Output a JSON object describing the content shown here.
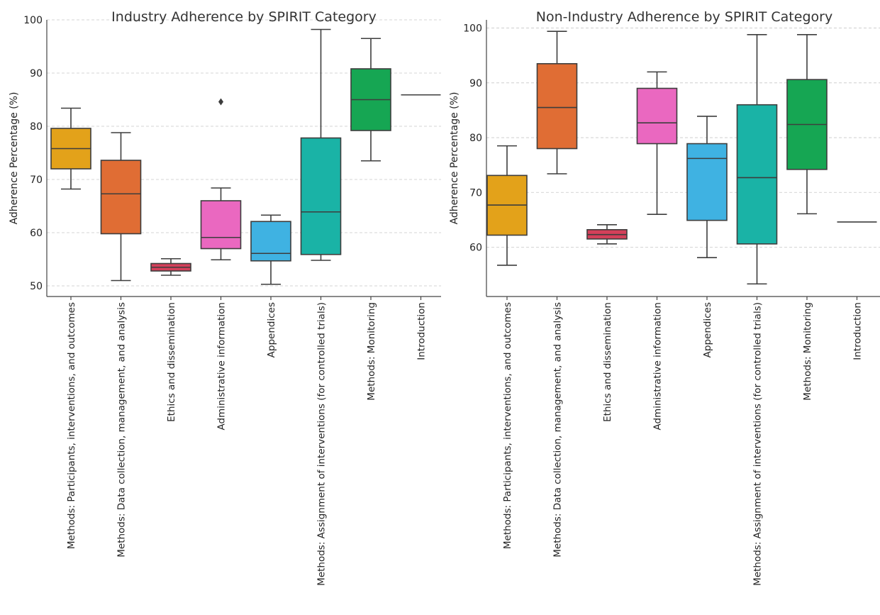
{
  "chart_data": [
    {
      "type": "box",
      "title": "Industry Adherence by SPIRIT Category",
      "ylabel": "Adherence Percentage (%)",
      "xlabel": "",
      "ylim": [
        48,
        100
      ],
      "yticks": [
        50,
        60,
        70,
        80,
        90,
        100
      ],
      "grid": true,
      "categories": [
        "Methods: Participants, interventions, and outcomes",
        "Methods: Data collection, management, and analysis",
        "Ethics and dissemination",
        "Administrative information",
        "Appendices",
        "Methods: Assignment of interventions (for controlled trials)",
        "Methods: Monitoring",
        "Introduction"
      ],
      "boxes": [
        {
          "whisker_low": 68.2,
          "q1": 72.0,
          "median": 75.8,
          "q3": 79.6,
          "whisker_high": 83.4,
          "outliers": [],
          "color": "#e3a21a"
        },
        {
          "whisker_low": 51.0,
          "q1": 59.8,
          "median": 67.3,
          "q3": 73.6,
          "whisker_high": 78.8,
          "outliers": [],
          "color": "#e06d34"
        },
        {
          "whisker_low": 52.0,
          "q1": 52.8,
          "median": 53.5,
          "q3": 54.2,
          "whisker_high": 55.1,
          "outliers": [],
          "color": "#d4405a"
        },
        {
          "whisker_low": 54.9,
          "q1": 57.0,
          "median": 59.1,
          "q3": 66.0,
          "whisker_high": 68.4,
          "outliers": [
            84.6
          ],
          "color": "#ea68c0"
        },
        {
          "whisker_low": 50.3,
          "q1": 54.7,
          "median": 56.1,
          "q3": 62.1,
          "whisker_high": 63.3,
          "outliers": [],
          "color": "#3fb2e2"
        },
        {
          "whisker_low": 54.8,
          "q1": 55.9,
          "median": 63.9,
          "q3": 77.8,
          "whisker_high": 98.2,
          "outliers": [],
          "color": "#1ab3a6"
        },
        {
          "whisker_low": 73.5,
          "q1": 79.2,
          "median": 85.0,
          "q3": 90.8,
          "whisker_high": 96.5,
          "outliers": [],
          "color": "#16a653"
        },
        {
          "whisker_low": 85.9,
          "q1": 85.9,
          "median": 85.9,
          "q3": 85.9,
          "whisker_high": 85.9,
          "outliers": [],
          "color": "#8c8c8c"
        }
      ]
    },
    {
      "type": "box",
      "title": "Non-Industry Adherence by SPIRIT Category",
      "ylabel": "Adherence Percentage (%)",
      "xlabel": "",
      "ylim": [
        51,
        101.5
      ],
      "yticks": [
        60,
        70,
        80,
        90,
        100
      ],
      "grid": true,
      "categories": [
        "Methods: Participants, interventions, and outcomes",
        "Methods: Data collection, management, and analysis",
        "Ethics and dissemination",
        "Administrative information",
        "Appendices",
        "Methods: Assignment of interventions (for controlled trials)",
        "Methods: Monitoring",
        "Introduction"
      ],
      "boxes": [
        {
          "whisker_low": 56.7,
          "q1": 62.2,
          "median": 67.7,
          "q3": 73.1,
          "whisker_high": 78.5,
          "outliers": [],
          "color": "#e3a21a"
        },
        {
          "whisker_low": 73.4,
          "q1": 78.0,
          "median": 85.5,
          "q3": 93.5,
          "whisker_high": 99.4,
          "outliers": [],
          "color": "#e06d34"
        },
        {
          "whisker_low": 60.6,
          "q1": 61.5,
          "median": 62.3,
          "q3": 63.2,
          "whisker_high": 64.1,
          "outliers": [],
          "color": "#d4405a"
        },
        {
          "whisker_low": 66.0,
          "q1": 78.9,
          "median": 82.7,
          "q3": 89.0,
          "whisker_high": 92.0,
          "outliers": [],
          "color": "#ea68c0"
        },
        {
          "whisker_low": 58.1,
          "q1": 64.9,
          "median": 76.2,
          "q3": 78.9,
          "whisker_high": 83.9,
          "outliers": [],
          "color": "#3fb2e2"
        },
        {
          "whisker_low": 53.3,
          "q1": 60.6,
          "median": 72.7,
          "q3": 86.0,
          "whisker_high": 98.8,
          "outliers": [],
          "color": "#1ab3a6"
        },
        {
          "whisker_low": 66.1,
          "q1": 74.2,
          "median": 82.4,
          "q3": 90.6,
          "whisker_high": 98.8,
          "outliers": [],
          "color": "#16a653"
        },
        {
          "whisker_low": 64.6,
          "q1": 64.6,
          "median": 64.6,
          "q3": 64.6,
          "whisker_high": 64.6,
          "outliers": [],
          "color": "#8c8c8c"
        }
      ]
    }
  ]
}
